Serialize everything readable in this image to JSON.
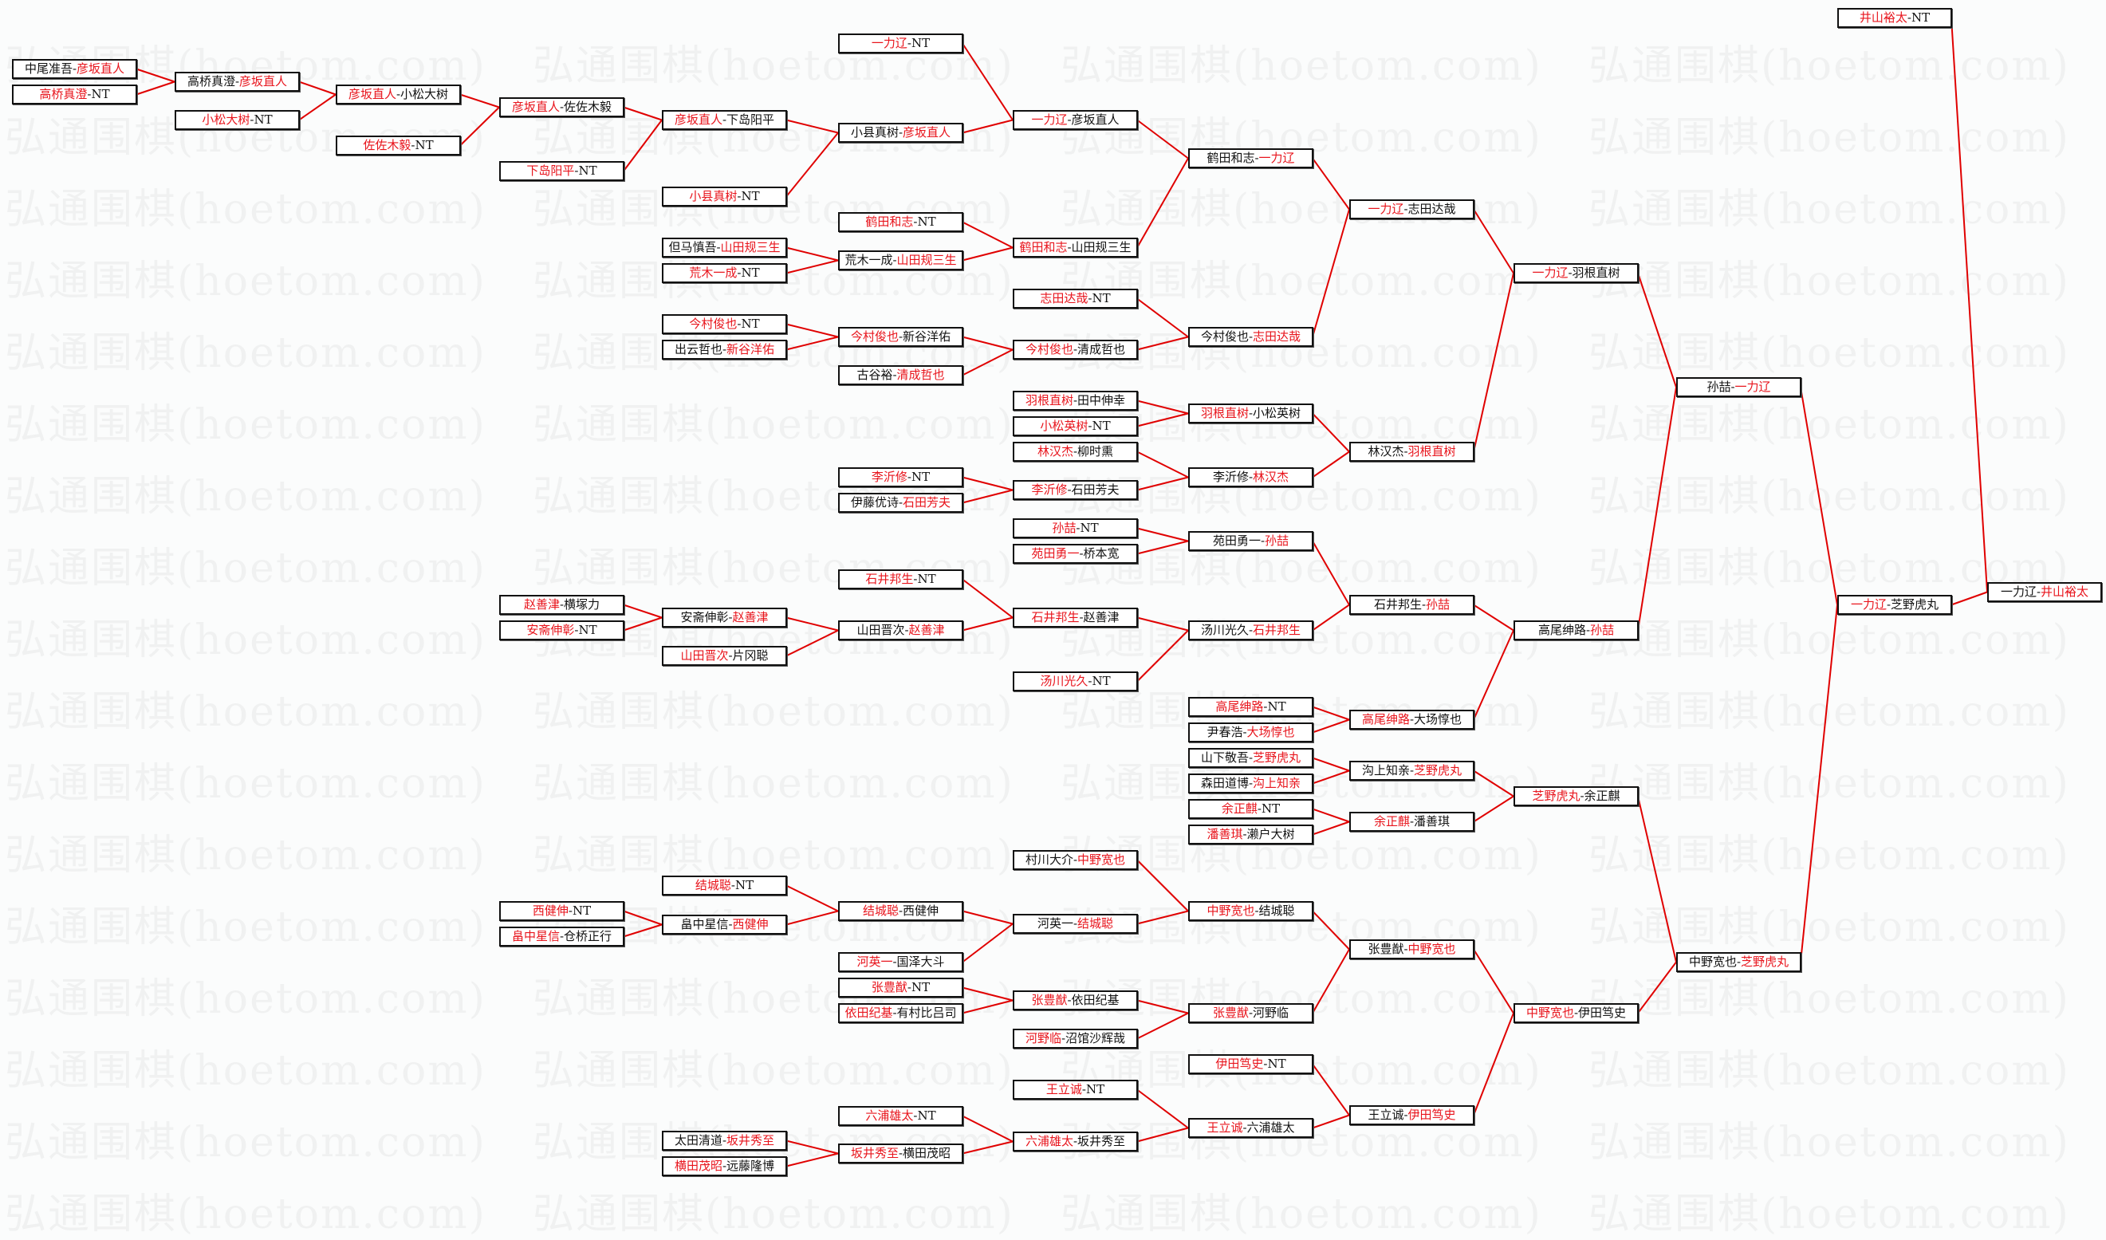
{
  "watermark": "弘通围棋(hoetom.com)",
  "colors": {
    "winner": "#e8141c",
    "line": "#e00000",
    "text": "#111111",
    "border": "#111111"
  },
  "separator": "-",
  "matches": [
    {
      "a": "中尾准吾",
      "b": "彦坂直人",
      "w": 1,
      "to": 2
    },
    {
      "a": "高桥真澄",
      "b": "NT",
      "w": 0,
      "to": 2
    },
    {
      "a": "高桥真澄",
      "b": "彦坂直人",
      "w": 1,
      "to": 4
    },
    {
      "a": "小松大树",
      "b": "NT",
      "w": 0,
      "to": 4
    },
    {
      "a": "彦坂直人",
      "b": "小松大树",
      "w": 0,
      "to": 6
    },
    {
      "a": "佐佐木毅",
      "b": "NT",
      "w": 0,
      "to": 6
    },
    {
      "a": "彦坂直人",
      "b": "佐佐木毅",
      "w": 0,
      "to": 8
    },
    {
      "a": "下岛阳平",
      "b": "NT",
      "w": 0,
      "to": 8
    },
    {
      "a": "彦坂直人",
      "b": "下岛阳平",
      "w": 0,
      "to": 10
    },
    {
      "a": "小县真树",
      "b": "NT",
      "w": 0,
      "to": 10
    },
    {
      "a": "小县真树",
      "b": "彦坂直人",
      "w": 1,
      "to": 12
    },
    {
      "a": "一力辽",
      "b": "NT",
      "w": 0,
      "to": 12
    },
    {
      "a": "一力辽",
      "b": "彦坂直人",
      "w": 0,
      "to": 14
    },
    {
      "a": "鹤田和志",
      "b": "山田规三生",
      "w": 0,
      "to": 14
    },
    {
      "a": "鹤田和志",
      "b": "一力辽",
      "w": 1,
      "to": 16
    },
    {
      "a": "今村俊也",
      "b": "志田达哉",
      "w": 1,
      "to": 16
    },
    {
      "a": "一力辽",
      "b": "志田达哉",
      "w": 0,
      "to": 18
    },
    {
      "a": "林汉杰",
      "b": "羽根直树",
      "w": 1,
      "to": 18
    },
    {
      "a": "一力辽",
      "b": "羽根直树",
      "w": 0,
      "to": 20
    },
    {
      "a": "高尾绅路",
      "b": "孙喆",
      "w": 1,
      "to": 20
    },
    {
      "a": "孙喆",
      "b": "一力辽",
      "w": 1,
      "to": 22
    },
    {
      "a": "中野宽也",
      "b": "芝野虎丸",
      "w": 1,
      "to": 22
    },
    {
      "a": "一力辽",
      "b": "芝野虎丸",
      "w": 0,
      "to": 24
    },
    {
      "a": "井山裕太",
      "b": "NT",
      "w": 0,
      "to": 24
    },
    {
      "a": "一力辽",
      "b": "井山裕太",
      "w": 1,
      "to": null
    },
    {
      "a": "鹤田和志",
      "b": "NT",
      "w": 0,
      "to": 13
    },
    {
      "a": "荒木一成",
      "b": "山田规三生",
      "w": 1,
      "to": 13
    },
    {
      "a": "但马慎吾",
      "b": "山田规三生",
      "w": 1,
      "to": 26
    },
    {
      "a": "荒木一成",
      "b": "NT",
      "w": 0,
      "to": 26
    },
    {
      "a": "志田达哉",
      "b": "NT",
      "w": 0,
      "to": 15
    },
    {
      "a": "今村俊也",
      "b": "清成哲也",
      "w": 0,
      "to": 15
    },
    {
      "a": "今村俊也",
      "b": "新谷洋佑",
      "w": 0,
      "to": 30
    },
    {
      "a": "古谷裕",
      "b": "清成哲也",
      "w": 1,
      "to": 30
    },
    {
      "a": "今村俊也",
      "b": "NT",
      "w": 0,
      "to": 31
    },
    {
      "a": "出云哲也",
      "b": "新谷洋佑",
      "w": 1,
      "to": 31
    },
    {
      "a": "羽根直树",
      "b": "小松英树",
      "w": 0,
      "to": 17
    },
    {
      "a": "李沂修",
      "b": "林汉杰",
      "w": 1,
      "to": 17
    },
    {
      "a": "羽根直树",
      "b": "田中伸幸",
      "w": 0,
      "to": 35
    },
    {
      "a": "小松英树",
      "b": "NT",
      "w": 0,
      "to": 35
    },
    {
      "a": "林汉杰",
      "b": "柳时熏",
      "w": 0,
      "to": 36
    },
    {
      "a": "李沂修",
      "b": "石田芳夫",
      "w": 0,
      "to": 36
    },
    {
      "a": "李沂修",
      "b": "NT",
      "w": 0,
      "to": 40
    },
    {
      "a": "伊藤优诗",
      "b": "石田芳夫",
      "w": 1,
      "to": 40
    },
    {
      "a": "石井邦生",
      "b": "孙喆",
      "w": 1,
      "to": 19
    },
    {
      "a": "高尾绅路",
      "b": "大场惇也",
      "w": 0,
      "to": 19
    },
    {
      "a": "苑田勇一",
      "b": "孙喆",
      "w": 1,
      "to": 43
    },
    {
      "a": "汤川光久",
      "b": "石井邦生",
      "w": 1,
      "to": 43
    },
    {
      "a": "孙喆",
      "b": "NT",
      "w": 0,
      "to": 45
    },
    {
      "a": "苑田勇一",
      "b": "桥本宽",
      "w": 0,
      "to": 45
    },
    {
      "a": "石井邦生",
      "b": "赵善津",
      "w": 0,
      "to": 46
    },
    {
      "a": "汤川光久",
      "b": "NT",
      "w": 0,
      "to": 46
    },
    {
      "a": "石井邦生",
      "b": "NT",
      "w": 0,
      "to": 49
    },
    {
      "a": "山田晋次",
      "b": "赵善津",
      "w": 1,
      "to": 49
    },
    {
      "a": "安斋伸彰",
      "b": "赵善津",
      "w": 1,
      "to": 52
    },
    {
      "a": "山田晋次",
      "b": "片冈聪",
      "w": 0,
      "to": 52
    },
    {
      "a": "赵善津",
      "b": "横塚力",
      "w": 0,
      "to": 53
    },
    {
      "a": "安斋伸彰",
      "b": "NT",
      "w": 0,
      "to": 53
    },
    {
      "a": "高尾绅路",
      "b": "NT",
      "w": 0,
      "to": 44
    },
    {
      "a": "尹春浩",
      "b": "大场惇也",
      "w": 1,
      "to": 44
    },
    {
      "a": "芝野虎丸",
      "b": "余正麒",
      "w": 0,
      "to": 21
    },
    {
      "a": "中野宽也",
      "b": "伊田笃史",
      "w": 0,
      "to": 21
    },
    {
      "a": "沟上知亲",
      "b": "芝野虎丸",
      "w": 1,
      "to": 59
    },
    {
      "a": "余正麒",
      "b": "潘善琪",
      "w": 0,
      "to": 59
    },
    {
      "a": "山下敬吾",
      "b": "芝野虎丸",
      "w": 1,
      "to": 61
    },
    {
      "a": "森田道博",
      "b": "沟上知亲",
      "w": 1,
      "to": 61
    },
    {
      "a": "余正麒",
      "b": "NT",
      "w": 0,
      "to": 62
    },
    {
      "a": "潘善琪",
      "b": "濑户大树",
      "w": 0,
      "to": 62
    },
    {
      "a": "张豊猷",
      "b": "中野宽也",
      "w": 1,
      "to": 60
    },
    {
      "a": "王立诚",
      "b": "伊田笃史",
      "w": 1,
      "to": 60
    },
    {
      "a": "中野宽也",
      "b": "结城聪",
      "w": 0,
      "to": 67
    },
    {
      "a": "张豊猷",
      "b": "河野临",
      "w": 0,
      "to": 67
    },
    {
      "a": "村川大介",
      "b": "中野宽也",
      "w": 1,
      "to": 69
    },
    {
      "a": "河英一",
      "b": "结城聪",
      "w": 1,
      "to": 69
    },
    {
      "a": "结城聪",
      "b": "西健伸",
      "w": 0,
      "to": 72
    },
    {
      "a": "河英一",
      "b": "国泽大斗",
      "w": 0,
      "to": 72
    },
    {
      "a": "结城聪",
      "b": "NT",
      "w": 0,
      "to": 73
    },
    {
      "a": "畠中星信",
      "b": "西健伸",
      "w": 1,
      "to": 73
    },
    {
      "a": "西健伸",
      "b": "NT",
      "w": 0,
      "to": 76
    },
    {
      "a": "畠中星信",
      "b": "仓桥正行",
      "w": 0,
      "to": 76
    },
    {
      "a": "张豊猷",
      "b": "依田纪基",
      "w": 0,
      "to": 70
    },
    {
      "a": "河野临",
      "b": "沼馆沙辉哉",
      "w": 0,
      "to": 70
    },
    {
      "a": "张豊猷",
      "b": "NT",
      "w": 0,
      "to": 79
    },
    {
      "a": "依田纪基",
      "b": "有村比吕司",
      "w": 0,
      "to": 79
    },
    {
      "a": "伊田笃史",
      "b": "NT",
      "w": 0,
      "to": 68
    },
    {
      "a": "王立诚",
      "b": "六浦雄太",
      "w": 0,
      "to": 68
    },
    {
      "a": "王立诚",
      "b": "NT",
      "w": 0,
      "to": 84
    },
    {
      "a": "六浦雄太",
      "b": "坂井秀至",
      "w": 0,
      "to": 84
    },
    {
      "a": "六浦雄太",
      "b": "NT",
      "w": 0,
      "to": 86
    },
    {
      "a": "坂井秀至",
      "b": "横田茂昭",
      "w": 0,
      "to": 86
    },
    {
      "a": "太田清道",
      "b": "坂井秀至",
      "w": 1,
      "to": 88
    },
    {
      "a": "横田茂昭",
      "b": "远藤隆博",
      "w": 0,
      "to": 88
    }
  ]
}
